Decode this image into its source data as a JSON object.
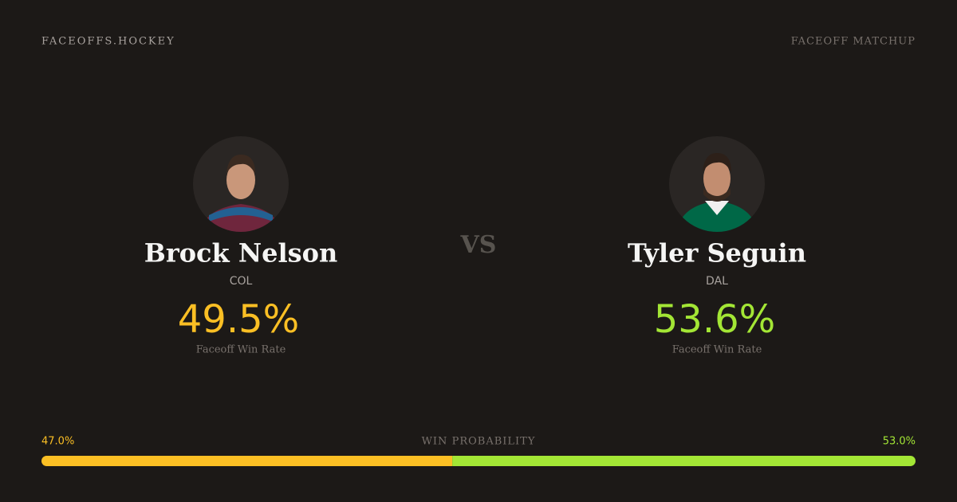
{
  "header": {
    "brand": "FACEOFFS.HOCKEY",
    "label": "FACEOFF MATCHUP"
  },
  "players": [
    {
      "name": "Brock Nelson",
      "team": "COL",
      "win_rate": "49.5%",
      "rate_label": "Faceoff Win Rate"
    },
    {
      "name": "Tyler Seguin",
      "team": "DAL",
      "win_rate": "53.6%",
      "rate_label": "Faceoff Win Rate"
    }
  ],
  "vs": "VS",
  "probability": {
    "title": "WIN PROBABILITY",
    "left": {
      "value": 47.0,
      "label": "47.0%"
    },
    "right": {
      "value": 53.0,
      "label": "53.0%"
    }
  }
}
